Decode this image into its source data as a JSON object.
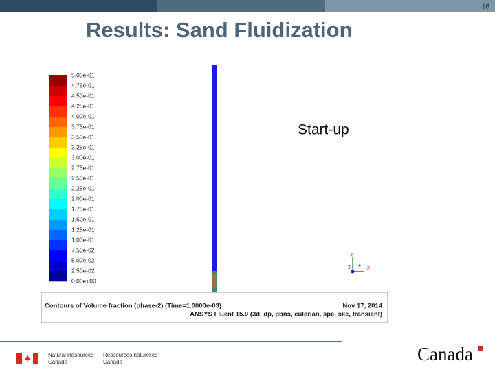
{
  "page_number": "16",
  "title": "Results: Sand Fluidization",
  "contour": {
    "legend_labels": [
      "5.00e-01",
      "4.75e-01",
      "4.50e-01",
      "4.25e-01",
      "4.00e-01",
      "3.75e-01",
      "3.50e-01",
      "3.25e-01",
      "3.00e-01",
      "2.75e-01",
      "2.50e-01",
      "2.25e-01",
      "2.00e-01",
      "1.75e-01",
      "1.50e-01",
      "1.25e-01",
      "1.00e-01",
      "7.50e-02",
      "5.00e-02",
      "2.50e-02",
      "0.00e+00"
    ],
    "annotation": "Start-up",
    "axes": [
      "y",
      "z",
      "x"
    ],
    "caption": {
      "left": "Contours of Volume fraction (phase-2)    (Time=1.0000e-03)",
      "date": "Nov 17, 2014",
      "software": "ANSYS Fluent 15.0 (3d, dp, pbns, eulerian, spe, ske, transient)"
    }
  },
  "footer": {
    "department_en": [
      "Natural Resources",
      "Canada"
    ],
    "department_fr": [
      "Ressources naturelles",
      "Canada"
    ],
    "wordmark": "Canada"
  }
}
